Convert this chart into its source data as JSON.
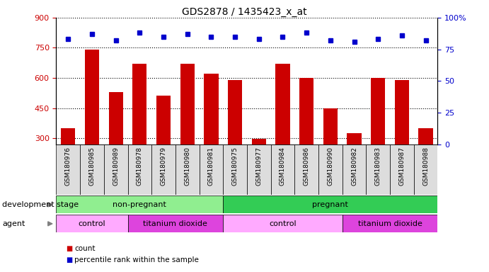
{
  "title": "GDS2878 / 1435423_x_at",
  "samples": [
    "GSM180976",
    "GSM180985",
    "GSM180989",
    "GSM180978",
    "GSM180979",
    "GSM180980",
    "GSM180981",
    "GSM180975",
    "GSM180977",
    "GSM180984",
    "GSM180986",
    "GSM180990",
    "GSM180982",
    "GSM180983",
    "GSM180987",
    "GSM180988"
  ],
  "counts": [
    350,
    740,
    530,
    670,
    510,
    670,
    620,
    590,
    295,
    670,
    600,
    450,
    325,
    600,
    590,
    350
  ],
  "percentiles": [
    83,
    87,
    82,
    88,
    85,
    87,
    85,
    85,
    83,
    85,
    88,
    82,
    81,
    83,
    86,
    82
  ],
  "ylim_left": [
    270,
    900
  ],
  "ylim_right": [
    0,
    100
  ],
  "yticks_left": [
    300,
    450,
    600,
    750,
    900
  ],
  "yticks_right": [
    0,
    25,
    50,
    75,
    100
  ],
  "bar_color": "#cc0000",
  "dot_color": "#0000cc",
  "bar_width": 0.6,
  "groups": {
    "development_stage": [
      {
        "label": "non-pregnant",
        "start": 0,
        "end": 7,
        "color": "#90ee90"
      },
      {
        "label": "pregnant",
        "start": 7,
        "end": 16,
        "color": "#33cc55"
      }
    ],
    "agent": [
      {
        "label": "control",
        "start": 0,
        "end": 3,
        "color": "#ffaaff"
      },
      {
        "label": "titanium dioxide",
        "start": 3,
        "end": 7,
        "color": "#dd44dd"
      },
      {
        "label": "control",
        "start": 7,
        "end": 12,
        "color": "#ffaaff"
      },
      {
        "label": "titanium dioxide",
        "start": 12,
        "end": 16,
        "color": "#dd44dd"
      }
    ]
  },
  "legend": [
    {
      "label": "count",
      "color": "#cc0000"
    },
    {
      "label": "percentile rank within the sample",
      "color": "#0000cc"
    }
  ],
  "background_color": "#ffffff",
  "tick_label_color_left": "#cc0000",
  "tick_label_color_right": "#0000cc",
  "xticklabel_bg": "#dddddd",
  "dev_stage_label": "development stage",
  "agent_label": "agent"
}
